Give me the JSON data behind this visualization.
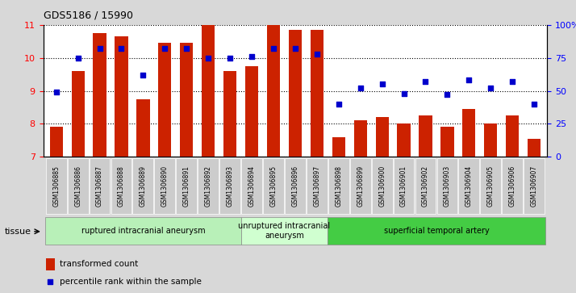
{
  "title": "GDS5186 / 15990",
  "samples": [
    "GSM1306885",
    "GSM1306886",
    "GSM1306887",
    "GSM1306888",
    "GSM1306889",
    "GSM1306890",
    "GSM1306891",
    "GSM1306892",
    "GSM1306893",
    "GSM1306894",
    "GSM1306895",
    "GSM1306896",
    "GSM1306897",
    "GSM1306898",
    "GSM1306899",
    "GSM1306900",
    "GSM1306901",
    "GSM1306902",
    "GSM1306903",
    "GSM1306904",
    "GSM1306905",
    "GSM1306906",
    "GSM1306907"
  ],
  "transformed_count": [
    7.9,
    9.6,
    10.75,
    10.65,
    8.75,
    10.45,
    10.45,
    11.0,
    9.6,
    9.75,
    11.0,
    10.85,
    10.85,
    7.6,
    8.1,
    8.2,
    8.0,
    8.25,
    7.9,
    8.45,
    8.0,
    8.25,
    7.55
  ],
  "percentile_rank": [
    49,
    75,
    82,
    82,
    62,
    82,
    82,
    75,
    75,
    76,
    82,
    82,
    78,
    40,
    52,
    55,
    48,
    57,
    47,
    58,
    52,
    57,
    40
  ],
  "ylim_left": [
    7,
    11
  ],
  "ylim_right": [
    0,
    100
  ],
  "yticks_left": [
    7,
    8,
    9,
    10,
    11
  ],
  "yticks_right": [
    0,
    25,
    50,
    75,
    100
  ],
  "ytick_labels_right": [
    "0",
    "25",
    "50",
    "75",
    "100%"
  ],
  "groups": [
    {
      "label": "ruptured intracranial aneurysm",
      "start": 0,
      "end": 8,
      "color": "#b8f0b8"
    },
    {
      "label": "unruptured intracranial\naneurysm",
      "start": 9,
      "end": 12,
      "color": "#d0ffd0"
    },
    {
      "label": "superficial temporal artery",
      "start": 13,
      "end": 22,
      "color": "#44cc44"
    }
  ],
  "bar_color": "#cc2200",
  "scatter_color": "#0000cc",
  "background_color": "#d8d8d8",
  "plot_bg_color": "#ffffff",
  "tick_bg_color": "#d0d0d0",
  "grid_color": "#000000",
  "tissue_label": "tissue",
  "legend_bar_label": "transformed count",
  "legend_scatter_label": "percentile rank within the sample"
}
